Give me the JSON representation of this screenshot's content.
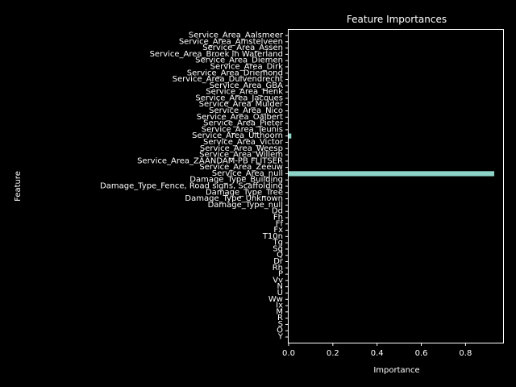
{
  "chart_data": {
    "type": "bar",
    "orientation": "horizontal",
    "title": "Feature Importances",
    "xlabel": "Importance",
    "ylabel": "Feature",
    "xlim": [
      0,
      0.97
    ],
    "xticks": [
      "0.0",
      "0.2",
      "0.4",
      "0.6",
      "0.8"
    ],
    "xtick_values": [
      0,
      0.2,
      0.4,
      0.6,
      0.8
    ],
    "grid": false,
    "bar_color": "#8dd3c7",
    "categories": [
      "Service_Area_Aalsmeer",
      "Service_Area_Amstelveen",
      "Service_Area_Assen",
      "Service_Area_Broek in Waterland",
      "Service_Area_Diemen",
      "Service_Area_Dirk",
      "Service_Area_Driemond",
      "Service_Area_Duivendrecht",
      "Service_Area_GBA",
      "Service_Area_Henk",
      "Service_Area_Jacques",
      "Service_Area_Mulder",
      "Service_Area_Nico",
      "Service_Area_Oalbert",
      "Service_Area_Pieter",
      "Service_Area_Teunis",
      "Service_Area_Uithoorn",
      "Service_Area_Victor",
      "Service_Area_Weesp",
      "Service_Area_Willem",
      "Service_Area_ZAANDAM-PB FLITSER",
      "Service_Area_Zeeuw",
      "Service_Area_null",
      "Damage_Type_Building",
      "Damage_Type_Fence, Road signs, Scaffolding",
      "Damage_Type_Tree",
      "Damage_Type_Unknown",
      "Damage_Type_null",
      "Dd",
      "Fh",
      "Ff",
      "Fx",
      "T10n",
      "Tg",
      "Sq",
      "Q",
      "Dr",
      "Rh",
      "P",
      "Vv",
      "N",
      "U",
      "Ww",
      "Ix",
      "M",
      "R",
      "S",
      "O",
      "Y"
    ],
    "values": [
      0,
      0,
      0,
      0,
      0,
      0,
      0,
      0,
      0,
      0,
      0,
      0,
      0,
      0,
      0,
      0,
      0.012,
      0,
      0,
      0,
      0,
      0,
      0.93,
      0,
      0,
      0,
      0,
      0,
      0,
      0,
      0,
      0,
      0,
      0,
      0,
      0,
      0,
      0,
      0,
      0,
      0,
      0,
      0,
      0,
      0,
      0,
      0,
      0,
      0
    ]
  }
}
